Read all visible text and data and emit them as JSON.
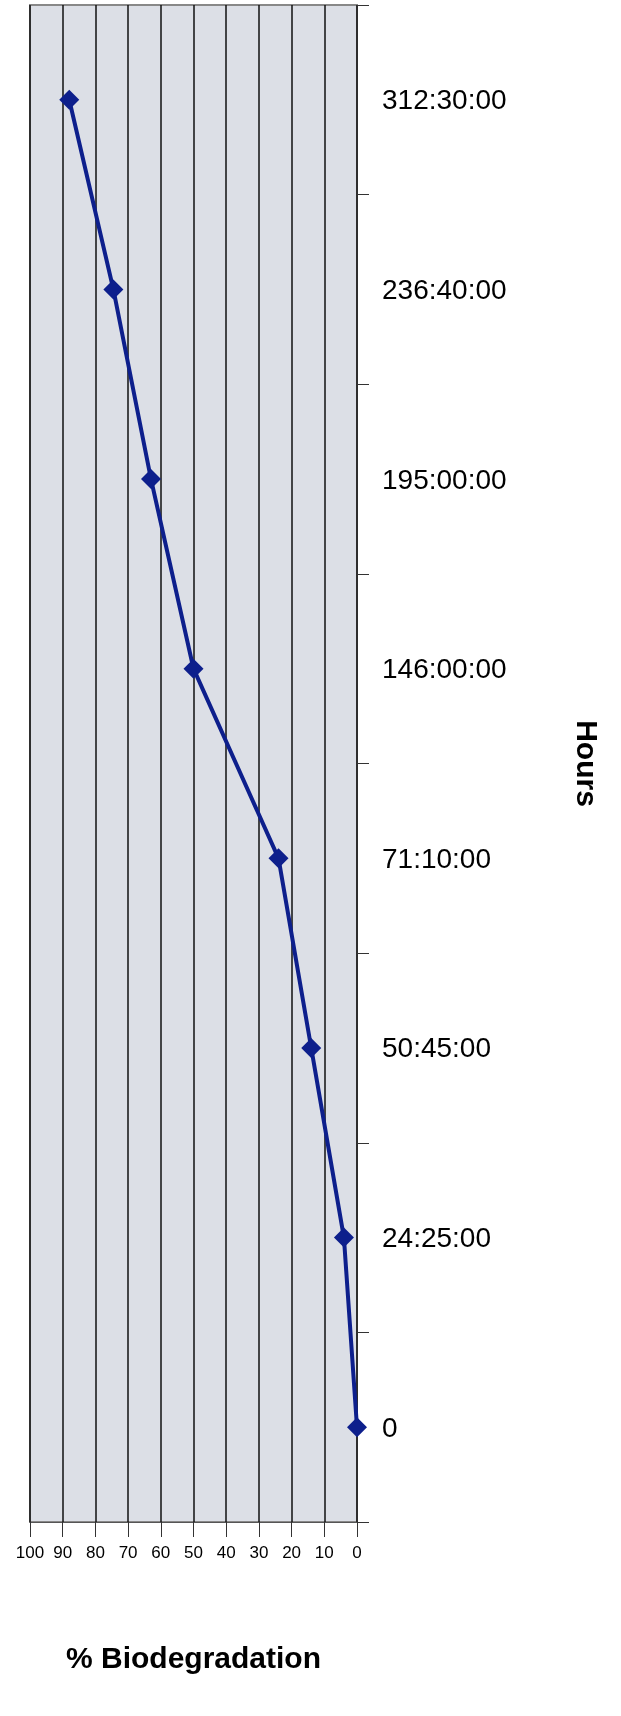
{
  "chart_data": {
    "type": "line",
    "orientation": "horizontal",
    "xlabel": "% Biodegradation",
    "ylabel": "Hours",
    "categories": [
      "312:30:00",
      "236:40:00",
      "195:00:00",
      "146:00:00",
      "71:10:00",
      "50:45:00",
      "24:25:00",
      "0"
    ],
    "values": [
      88,
      74.5,
      63,
      50,
      24,
      14,
      4,
      0
    ],
    "color": "#0d1f8c",
    "xlim": [
      100,
      0
    ],
    "xticks": [
      100,
      90,
      80,
      70,
      60,
      50,
      40,
      30,
      20,
      10,
      0
    ],
    "grid": "x",
    "marker": "diamond",
    "line_style": "solid"
  }
}
